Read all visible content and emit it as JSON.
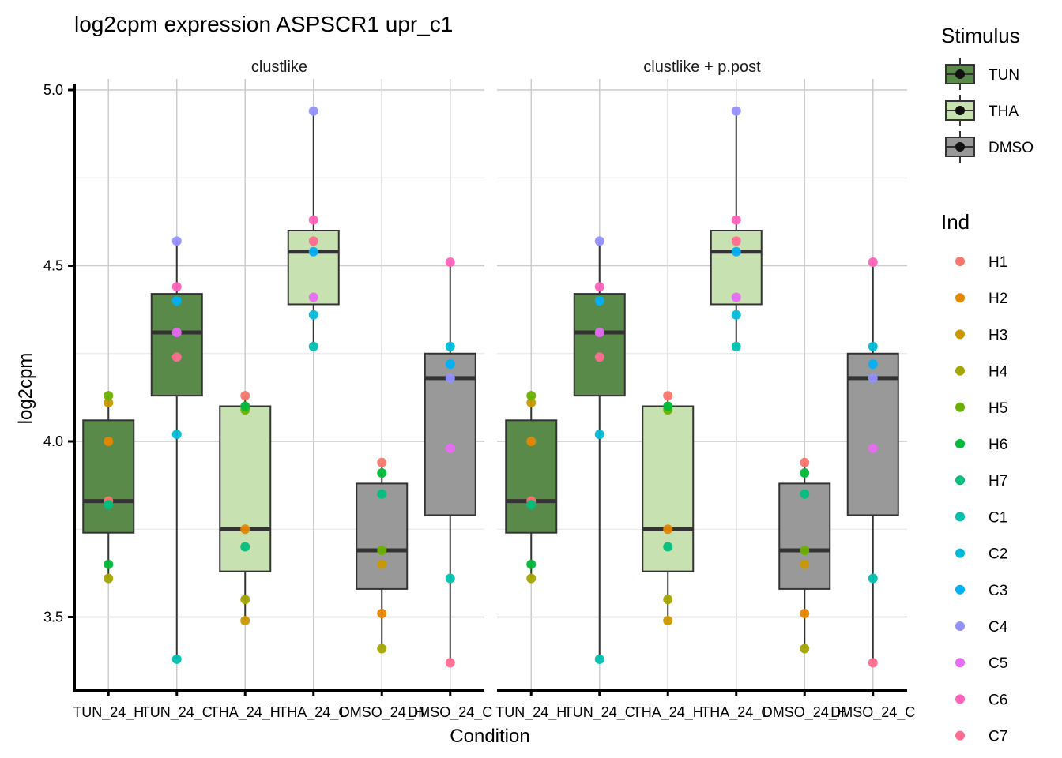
{
  "chart_data": {
    "type": "box",
    "title": "log2cpm expression ASPSCR1 upr_c1",
    "xlabel": "Condition",
    "ylabel": "log2cpm",
    "ylim": [
      3.29,
      5.02
    ],
    "yticks": [
      3.5,
      4.0,
      4.5,
      5.0
    ],
    "ytick_labels": [
      "3.5",
      "4.0",
      "4.5",
      "5.0"
    ],
    "grid": true,
    "facets": [
      "clustlike",
      "clustlike + p.post"
    ],
    "categories": [
      "TUN_24_H",
      "TUN_24_C",
      "THA_24_H",
      "THA_24_C",
      "DMSO_24_H",
      "DMSO_24_C"
    ],
    "category_stimulus": [
      "TUN",
      "TUN",
      "THA",
      "THA",
      "DMSO",
      "DMSO"
    ],
    "boxes": [
      {
        "category": "TUN_24_H",
        "lower_whisker": 3.61,
        "q1": 3.74,
        "median": 3.83,
        "q3": 4.06,
        "upper_whisker": 4.13
      },
      {
        "category": "TUN_24_C",
        "lower_whisker": 3.38,
        "q1": 4.13,
        "median": 4.31,
        "q3": 4.42,
        "upper_whisker": 4.57
      },
      {
        "category": "THA_24_H",
        "lower_whisker": 3.49,
        "q1": 3.63,
        "median": 3.75,
        "q3": 4.1,
        "upper_whisker": 4.13
      },
      {
        "category": "THA_24_C",
        "lower_whisker": 4.27,
        "q1": 4.39,
        "median": 4.54,
        "q3": 4.6,
        "upper_whisker": 4.94
      },
      {
        "category": "DMSO_24_H",
        "lower_whisker": 3.41,
        "q1": 3.58,
        "median": 3.69,
        "q3": 3.88,
        "upper_whisker": 3.94
      },
      {
        "category": "DMSO_24_C",
        "lower_whisker": 3.37,
        "q1": 3.79,
        "median": 4.18,
        "q3": 4.25,
        "upper_whisker": 4.51
      }
    ],
    "points": [
      {
        "category": "TUN_24_H",
        "ind": "H1",
        "value": 3.83
      },
      {
        "category": "TUN_24_H",
        "ind": "H2",
        "value": 4.0
      },
      {
        "category": "TUN_24_H",
        "ind": "H3",
        "value": 4.11
      },
      {
        "category": "TUN_24_H",
        "ind": "H4",
        "value": 3.61
      },
      {
        "category": "TUN_24_H",
        "ind": "H5",
        "value": 4.13
      },
      {
        "category": "TUN_24_H",
        "ind": "H6",
        "value": 3.65
      },
      {
        "category": "TUN_24_H",
        "ind": "H7",
        "value": 3.82
      },
      {
        "category": "TUN_24_C",
        "ind": "C1",
        "value": 3.38
      },
      {
        "category": "TUN_24_C",
        "ind": "C2",
        "value": 4.02
      },
      {
        "category": "TUN_24_C",
        "ind": "C3",
        "value": 4.4
      },
      {
        "category": "TUN_24_C",
        "ind": "C4",
        "value": 4.57
      },
      {
        "category": "TUN_24_C",
        "ind": "C5",
        "value": 4.31
      },
      {
        "category": "TUN_24_C",
        "ind": "C6",
        "value": 4.44
      },
      {
        "category": "TUN_24_C",
        "ind": "C7",
        "value": 4.24
      },
      {
        "category": "THA_24_H",
        "ind": "H1",
        "value": 4.13
      },
      {
        "category": "THA_24_H",
        "ind": "H2",
        "value": 3.75
      },
      {
        "category": "THA_24_H",
        "ind": "H3",
        "value": 3.49
      },
      {
        "category": "THA_24_H",
        "ind": "H4",
        "value": 3.55
      },
      {
        "category": "THA_24_H",
        "ind": "H5",
        "value": 4.09
      },
      {
        "category": "THA_24_H",
        "ind": "H6",
        "value": 4.1
      },
      {
        "category": "THA_24_H",
        "ind": "H7",
        "value": 3.7
      },
      {
        "category": "THA_24_C",
        "ind": "C1",
        "value": 4.27
      },
      {
        "category": "THA_24_C",
        "ind": "C2",
        "value": 4.36
      },
      {
        "category": "THA_24_C",
        "ind": "C3",
        "value": 4.54
      },
      {
        "category": "THA_24_C",
        "ind": "C4",
        "value": 4.94
      },
      {
        "category": "THA_24_C",
        "ind": "C5",
        "value": 4.41
      },
      {
        "category": "THA_24_C",
        "ind": "C6",
        "value": 4.63
      },
      {
        "category": "THA_24_C",
        "ind": "C7",
        "value": 4.57
      },
      {
        "category": "DMSO_24_H",
        "ind": "H1",
        "value": 3.94
      },
      {
        "category": "DMSO_24_H",
        "ind": "H2",
        "value": 3.51
      },
      {
        "category": "DMSO_24_H",
        "ind": "H3",
        "value": 3.65
      },
      {
        "category": "DMSO_24_H",
        "ind": "H4",
        "value": 3.41
      },
      {
        "category": "DMSO_24_H",
        "ind": "H5",
        "value": 3.69
      },
      {
        "category": "DMSO_24_H",
        "ind": "H6",
        "value": 3.91
      },
      {
        "category": "DMSO_24_H",
        "ind": "H7",
        "value": 3.85
      },
      {
        "category": "DMSO_24_C",
        "ind": "C1",
        "value": 3.61
      },
      {
        "category": "DMSO_24_C",
        "ind": "C2",
        "value": 4.27
      },
      {
        "category": "DMSO_24_C",
        "ind": "C3",
        "value": 4.22
      },
      {
        "category": "DMSO_24_C",
        "ind": "C4",
        "value": 4.18
      },
      {
        "category": "DMSO_24_C",
        "ind": "C5",
        "value": 3.98
      },
      {
        "category": "DMSO_24_C",
        "ind": "C6",
        "value": 4.51
      },
      {
        "category": "DMSO_24_C",
        "ind": "C7",
        "value": 3.37
      }
    ],
    "legends": [
      {
        "title": "Stimulus",
        "position": "right",
        "entries": [
          {
            "label": "TUN",
            "color": "#5a8a4a"
          },
          {
            "label": "THA",
            "color": "#c7e2b0"
          },
          {
            "label": "DMSO",
            "color": "#999999"
          }
        ]
      },
      {
        "title": "Ind",
        "position": "right",
        "entries": [
          {
            "label": "H1",
            "color": "#F8766D"
          },
          {
            "label": "H2",
            "color": "#E58700"
          },
          {
            "label": "H3",
            "color": "#C99800"
          },
          {
            "label": "H4",
            "color": "#A3A500"
          },
          {
            "label": "H5",
            "color": "#6BB100"
          },
          {
            "label": "H6",
            "color": "#00BA38"
          },
          {
            "label": "H7",
            "color": "#00BF7D"
          },
          {
            "label": "C1",
            "color": "#00C0AF"
          },
          {
            "label": "C2",
            "color": "#00BCD8"
          },
          {
            "label": "C3",
            "color": "#00B0F6"
          },
          {
            "label": "C4",
            "color": "#9590FF"
          },
          {
            "label": "C5",
            "color": "#E76BF3"
          },
          {
            "label": "C6",
            "color": "#FF62BC"
          },
          {
            "label": "C7",
            "color": "#FF6C91"
          }
        ]
      }
    ]
  }
}
